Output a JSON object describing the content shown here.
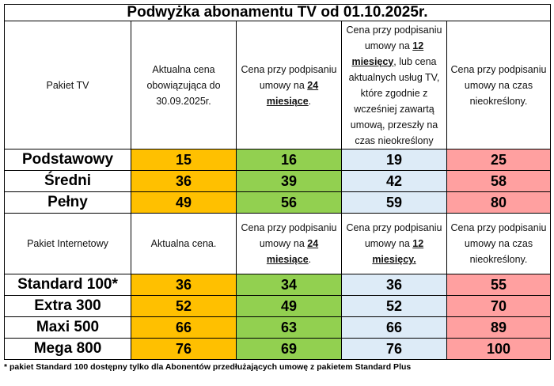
{
  "title": "Podwyżka abonamentu TV od 01.10.2025r.",
  "column_colors": [
    "#ffc000",
    "#92d050",
    "#ddebf7",
    "#ffa0a0"
  ],
  "sections": [
    {
      "header": [
        [
          "Pakiet TV"
        ],
        [
          "Aktualna cena obowiązująca do 30.09.2025r."
        ],
        [
          "Cena przy podpisaniu umowy na ",
          {
            "text": "24 miesiące",
            "strong": true
          },
          "."
        ],
        [
          "Cena przy podpisaniu umowy na ",
          {
            "text": "12 miesięcy",
            "strong": true
          },
          ", lub cena aktualnych usług TV, które zgodnie z wcześniej zawartą umową, przeszły na czas nieokreślony"
        ],
        [
          "Cena przy podpisaniu umowy na czas nieokreślony."
        ]
      ],
      "rows": [
        {
          "name": "Podstawowy",
          "values": [
            15,
            16,
            19,
            25
          ]
        },
        {
          "name": "Średni",
          "values": [
            36,
            39,
            42,
            58
          ]
        },
        {
          "name": "Pełny",
          "values": [
            49,
            56,
            59,
            80
          ]
        }
      ]
    },
    {
      "header": [
        [
          "Pakiet Internetowy"
        ],
        [
          "Aktualna cena."
        ],
        [
          "Cena przy podpisaniu umowy na ",
          {
            "text": "24 miesiące",
            "strong": true
          },
          "."
        ],
        [
          "Cena przy podpisaniu umowy na ",
          {
            "text": "12 miesięcy.",
            "strong": true
          }
        ],
        [
          "Cena przy podpisaniu umowy na czas nieokreślony."
        ]
      ],
      "rows": [
        {
          "name": "Standard 100*",
          "values": [
            36,
            34,
            36,
            55
          ]
        },
        {
          "name": "Extra 300",
          "values": [
            52,
            49,
            52,
            70
          ]
        },
        {
          "name": "Maxi 500",
          "values": [
            66,
            63,
            66,
            89
          ]
        },
        {
          "name": "Mega 800",
          "values": [
            76,
            69,
            76,
            100
          ]
        }
      ]
    }
  ],
  "footnote": "* pakiet Standard 100 dostępny tylko dla Abonentów przedłużających umowę z pakietem Standard Plus"
}
